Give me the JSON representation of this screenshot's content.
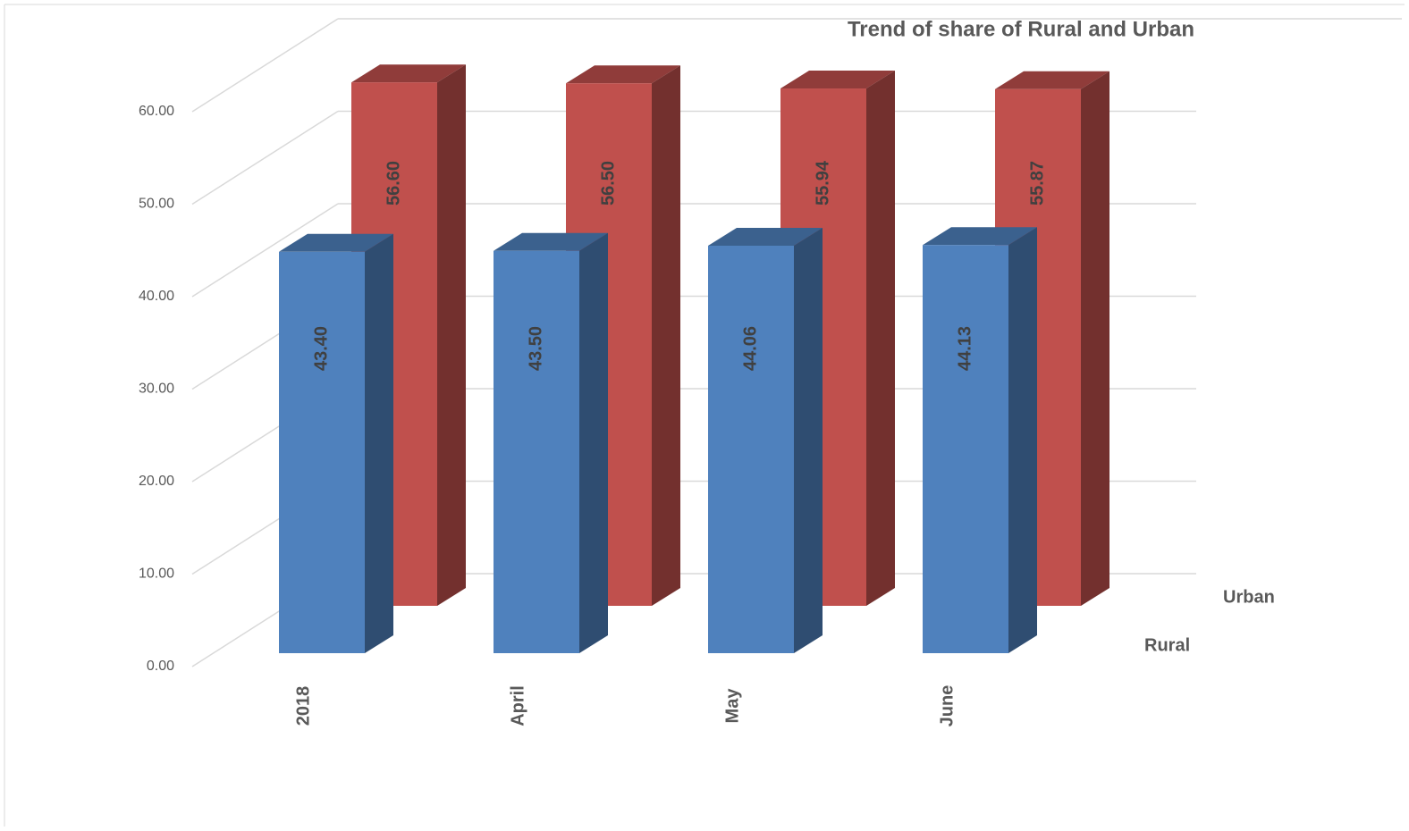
{
  "chart_data": {
    "type": "bar3d",
    "title": "Trend of  share of Rural and Urban",
    "categories": [
      "2018",
      "April",
      "May",
      "June"
    ],
    "series": [
      {
        "name": "Rural",
        "color": "#4f81bd",
        "values": [
          43.4,
          43.5,
          44.06,
          44.13
        ],
        "value_labels": [
          "43.40",
          "43.50",
          "44.06",
          "44.13"
        ]
      },
      {
        "name": "Urban",
        "color": "#c0504d",
        "values": [
          56.6,
          56.5,
          55.94,
          55.87
        ],
        "value_labels": [
          "56.60",
          "56.50",
          "55.94",
          "55.87"
        ]
      }
    ],
    "ylim": [
      0,
      60
    ],
    "yticks": [
      {
        "value": 0,
        "label": "0.00"
      },
      {
        "value": 10,
        "label": "10.00"
      },
      {
        "value": 20,
        "label": "20.00"
      },
      {
        "value": 30,
        "label": "30.00"
      },
      {
        "value": 40,
        "label": "40.00"
      },
      {
        "value": 50,
        "label": "50.00"
      },
      {
        "value": 60,
        "label": "60.00"
      }
    ],
    "grid": true
  }
}
